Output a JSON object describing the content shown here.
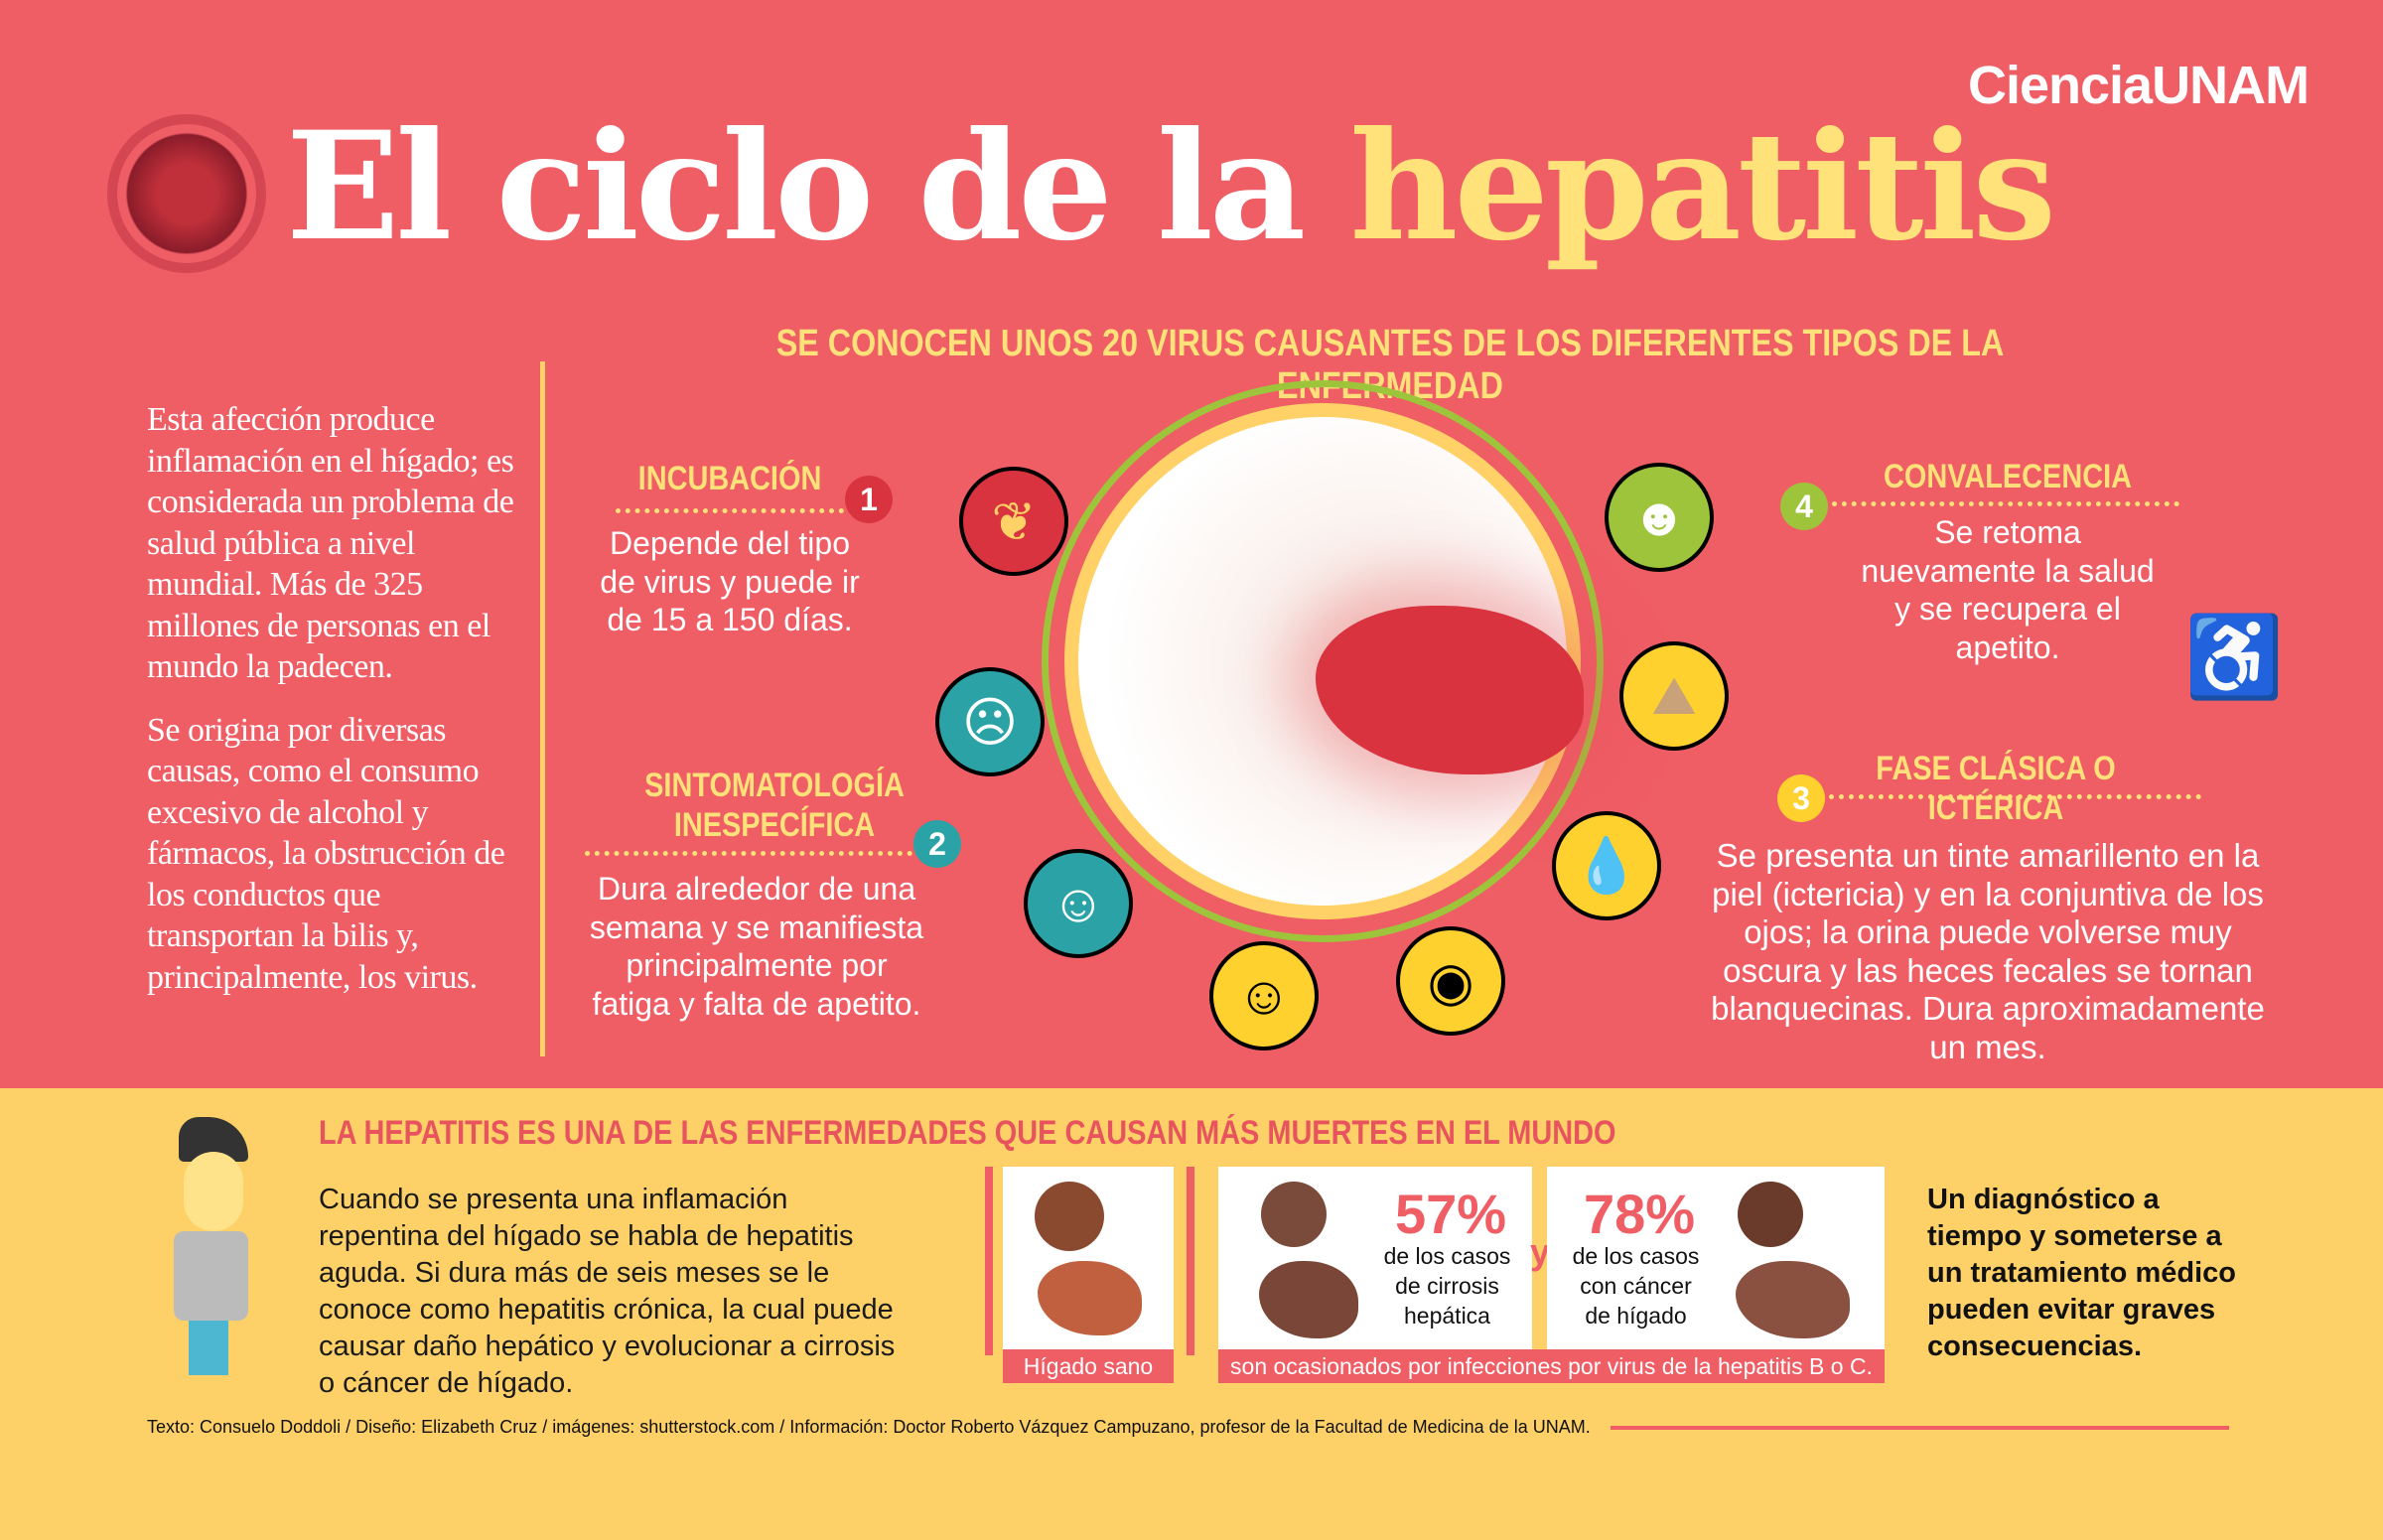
{
  "header": {
    "title_white": "El ciclo de la",
    "title_yellow": "hepatitis",
    "logo": "CienciaUNAM",
    "subtitle": "SE CONOCEN UNOS 20 VIRUS CAUSANTES DE LOS DIFERENTES TIPOS DE LA ENFERMEDAD"
  },
  "intro": {
    "p1": "Esta afección produce inflamación en el hígado; es considerada un problema de salud pública a nivel mundial. Más de 325 millones de personas en el mundo la padecen.",
    "p2": "Se origina por diversas causas, como el consumo excesivo de alcohol y fármacos, la obstrucción de los conductos que transportan la bilis y, principalmente, los virus."
  },
  "stages": [
    {
      "num": "1",
      "title": "INCUBACIÓN",
      "text": "Depende del tipo de virus y puede ir de 15 a 150 días."
    },
    {
      "num": "2",
      "title_l1": "SINTOMATOLOGÍA",
      "title_l2": "INESPECÍFICA",
      "text": "Dura alrededor de una semana y se manifiesta principalmente por fatiga y falta de apetito."
    },
    {
      "num": "3",
      "title": "FASE CLÁSICA O ICTÉRICA",
      "text": "Se presenta un tinte amarillento en la piel (icterICIA) y en la conjuntiva de los ojos; la orina puede volverse muy oscura y las heces fecales se tornan blanquecinas. Dura aproximadamente un mes."
    },
    {
      "num": "4",
      "title": "CONVALECENCIA",
      "text": "Se retoma nuevamente la salud y se recupera el apetito."
    }
  ],
  "colors": {
    "pink": "#EF5D65",
    "yellow": "#FED068",
    "title_yellow": "#FFE27A",
    "green": "#9DC43A"
  },
  "bottom": {
    "heading": "LA HEPATITIS ES UNA DE LAS ENFERMEDADES QUE CAUSAN MÁS MUERTES EN EL MUNDO",
    "paragraph": "Cuando se presenta una inflamación repentina del hígado se habla de hepatitis aguda. Si dura más de seis meses se le conoce como hepatitis crónica, la cual puede causar daño hepático y evolucionar a cirrosis o cáncer de hígado.",
    "healthy_caption": "Hígado sano",
    "pct1": "57%",
    "pct1_l1": "de los casos",
    "pct1_l2": "de cirrosis",
    "pct1_l3": "hepática",
    "and": "y",
    "pct2": "78%",
    "pct2_l1": "de los casos",
    "pct2_l2": "con cáncer",
    "pct2_l3": "de hígado",
    "cause_caption": "son ocasionados por infecciones por virus de la hepatitis B o C.",
    "conclusion": "Un diagnóstico a tiempo y someterse a un tratamiento médico pueden evitar graves consecuencias.",
    "credits": "Texto: Consuelo Doddoli / Diseño: Elizabeth Cruz / imágenes: shutterstock.com / Información: Doctor Roberto Vázquez Campuzano, profesor de la Facultad de Medicina de la UNAM."
  }
}
